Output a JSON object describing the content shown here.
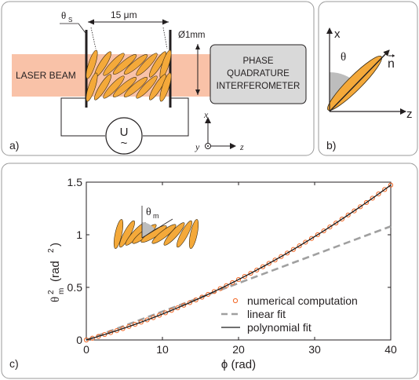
{
  "panel_a": {
    "label": "a)",
    "theta_s": "θ",
    "theta_s_sub": "S",
    "width": "15 μm",
    "diameter": "Ø1mm",
    "laser": "LASER BEAM",
    "box_line1": "PHASE",
    "box_line2": "QUADRATURE",
    "box_line3": "INTERFEROMETER",
    "voltage": "U",
    "ac_symbol": "~",
    "axis_x": "x",
    "axis_y": "y",
    "axis_z": "z"
  },
  "panel_b": {
    "label": "b)",
    "axis_x": "x",
    "axis_z": "z",
    "theta": "θ",
    "n": "n"
  },
  "panel_c": {
    "label": "c)",
    "inset_theta": "θ",
    "inset_sub": "m"
  },
  "colors": {
    "laser": "#f9c2a8",
    "molecule": "#f4a93a",
    "numerical": "#f26522",
    "linear": "#a0a0a0",
    "polynomial": "#1a1a1a"
  },
  "chart_data": {
    "type": "scatter",
    "xlabel": "ϕ (rad)",
    "ylabel_main": "θ",
    "ylabel_sup": "2",
    "ylabel_sub": "m",
    "ylabel_unit": "(rad",
    "ylabel_unit_sup": "2",
    "ylabel_unit_end": ")",
    "xlim": [
      0,
      40
    ],
    "ylim": [
      0,
      1.5
    ],
    "xticks": [
      0,
      10,
      20,
      30,
      40
    ],
    "yticks": [
      0,
      0.5,
      1,
      1.5
    ],
    "xtick_labels": [
      "0",
      "10",
      "20",
      "30",
      "40"
    ],
    "ytick_labels": [
      "0",
      "0.5",
      "1",
      "1.5"
    ],
    "legend_position": "bottom-right",
    "series": [
      {
        "name": "numerical computation",
        "style": "circles",
        "x_start": 0,
        "x_end": 40,
        "x_step": 0.8,
        "model": "0.0206*x + 0.000405*x^2"
      },
      {
        "name": "linear fit",
        "style": "dashed",
        "x": [
          0,
          40
        ],
        "y": [
          0,
          1.08
        ]
      },
      {
        "name": "polynomial fit",
        "style": "solid",
        "model": "0.0206*x + 0.000405*x^2"
      }
    ]
  }
}
